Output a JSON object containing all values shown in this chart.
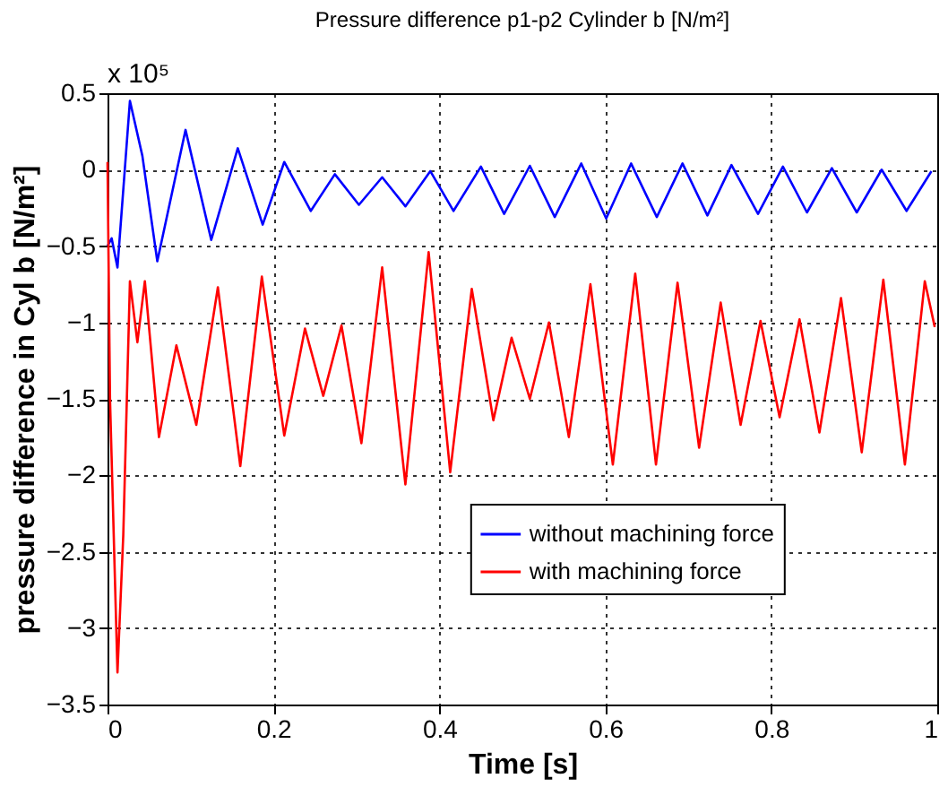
{
  "chart_data": {
    "type": "line",
    "title": "Pressure difference p1-p2 Cylinder b [N/m²]",
    "xlabel": "Time [s]",
    "ylabel": "pressure difference in Cyl b [N/m²]",
    "annotations": [
      "x 10⁵"
    ],
    "xlim": [
      0,
      1
    ],
    "xticks": [
      0,
      0.2,
      0.4,
      0.6,
      0.8,
      1
    ],
    "ylim": [
      -3.5,
      0.5
    ],
    "yticks": [
      -3.5,
      -3,
      -2.5,
      -2,
      -1.5,
      -1,
      -0.5,
      0,
      0.5
    ],
    "grid": true,
    "legend": "right",
    "line_style": "solid",
    "marker": "none",
    "series": [
      {
        "name": "without machining force",
        "color": "#0000ff",
        "x": [
          0,
          0.005,
          0.012,
          0.027,
          0.042,
          0.06,
          0.094,
          0.125,
          0.157,
          0.187,
          0.213,
          0.245,
          0.274,
          0.303,
          0.331,
          0.359,
          0.389,
          0.417,
          0.45,
          0.478,
          0.509,
          0.539,
          0.571,
          0.601,
          0.631,
          0.662,
          0.693,
          0.723,
          0.752,
          0.784,
          0.814,
          0.843,
          0.873,
          0.903,
          0.933,
          0.963,
          0.993
        ],
        "values": [
          -0.5,
          -0.45,
          -0.64,
          0.45,
          0.09,
          -0.6,
          0.26,
          -0.46,
          0.14,
          -0.36,
          0.05,
          -0.27,
          -0.03,
          -0.23,
          -0.05,
          -0.24,
          -0.01,
          -0.27,
          0.02,
          -0.29,
          0.025,
          -0.31,
          0.04,
          -0.32,
          0.04,
          -0.31,
          0.04,
          -0.3,
          0.03,
          -0.29,
          0.02,
          -0.28,
          0.01,
          -0.28,
          0,
          -0.27,
          -0.01
        ]
      },
      {
        "name": "with machining force",
        "color": "#ff0000",
        "x": [
          0,
          0.003,
          0.012,
          0.019,
          0.027,
          0.036,
          0.045,
          0.062,
          0.083,
          0.107,
          0.133,
          0.16,
          0.186,
          0.213,
          0.238,
          0.26,
          0.282,
          0.306,
          0.331,
          0.359,
          0.387,
          0.413,
          0.439,
          0.465,
          0.487,
          0.509,
          0.532,
          0.556,
          0.582,
          0.609,
          0.636,
          0.661,
          0.687,
          0.713,
          0.739,
          0.763,
          0.787,
          0.81,
          0.834,
          0.858,
          0.884,
          0.909,
          0.935,
          0.961,
          0.985,
          0.997
        ],
        "values": [
          0.05,
          -1.5,
          -3.29,
          -2.39,
          -0.73,
          -1.13,
          -0.73,
          -1.75,
          -1.15,
          -1.67,
          -0.77,
          -1.94,
          -0.7,
          -1.74,
          -1.04,
          -1.48,
          -1.02,
          -1.79,
          -0.64,
          -2.06,
          -0.54,
          -1.98,
          -0.78,
          -1.64,
          -1.1,
          -1.5,
          -1,
          -1.75,
          -0.75,
          -1.93,
          -0.68,
          -1.93,
          -0.74,
          -1.82,
          -0.87,
          -1.67,
          -0.99,
          -1.62,
          -0.98,
          -1.72,
          -0.84,
          -1.85,
          -0.72,
          -1.93,
          -0.73,
          -1.03
        ]
      }
    ]
  }
}
